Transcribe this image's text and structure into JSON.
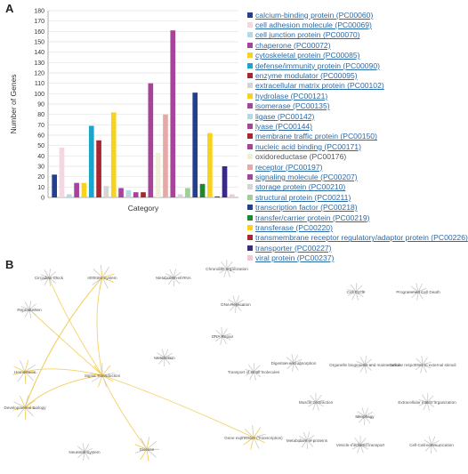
{
  "panel_a": {
    "label": "A"
  },
  "panel_b": {
    "label": "B"
  },
  "chart_data": {
    "type": "bar",
    "title": "",
    "xlabel": "Category",
    "ylabel": "Number of Genes",
    "ylim": [
      0,
      180
    ],
    "yticks": [
      0,
      10,
      20,
      30,
      40,
      50,
      60,
      70,
      80,
      90,
      100,
      110,
      120,
      130,
      140,
      150,
      160,
      170,
      180
    ],
    "grid": true,
    "legend_position": "right",
    "categories": [
      "calcium-binding protein (PC00060)",
      "cell adhesion molecule (PC00069)",
      "cell junction protein (PC00070)",
      "chaperone (PC00072)",
      "cytoskeletal protein (PC00085)",
      "defense/immunity protein (PC00090)",
      "enzyme modulator (PC00095)",
      "extracellular matrix protein (PC00102)",
      "hydrolase (PC00121)",
      "isomerase (PC00135)",
      "ligase (PC00142)",
      "lyase (PC00144)",
      "membrane traffic protein (PC00150)",
      "nucleic acid binding (PC00171)",
      "oxidoreductase (PC00176)",
      "receptor (PC00197)",
      "signaling molecule (PC00207)",
      "storage protein (PC00210)",
      "structural protein (PC00211)",
      "transcription factor (PC00218)",
      "transfer/carrier protein (PC00219)",
      "transferase (PC00220)",
      "transmembrane receptor regulatory/adaptor protein (PC00226)",
      "transporter (PC00227)",
      "viral protein (PC00237)"
    ],
    "values": [
      22,
      48,
      3,
      14,
      14,
      69,
      55,
      11,
      82,
      9,
      7,
      5,
      5,
      110,
      43,
      80,
      161,
      3,
      9,
      101,
      13,
      62,
      1,
      30,
      3
    ],
    "colors": [
      "#243f8e",
      "#f4d7e3",
      "#b6d9e6",
      "#a8439a",
      "#f7d21e",
      "#1aa6c9",
      "#a8262f",
      "#d5d5d5",
      "#f7d21e",
      "#a8439a",
      "#b6d9e6",
      "#a8439a",
      "#a8262f",
      "#a8439a",
      "#f1efd8",
      "#e8a8a8",
      "#a8439a",
      "#d5d5d5",
      "#9fcf94",
      "#243f8e",
      "#1a8a2c",
      "#f7d21e",
      "#a8262f",
      "#3a2a86",
      "#f4c7d8"
    ],
    "legend_linked": [
      true,
      true,
      true,
      true,
      true,
      true,
      true,
      true,
      true,
      true,
      true,
      true,
      true,
      true,
      false,
      true,
      true,
      true,
      true,
      true,
      true,
      true,
      true,
      true,
      true
    ]
  },
  "pathway_map": {
    "nodes": [
      {
        "name": "Circadian Clock"
      },
      {
        "name": "Immune System"
      },
      {
        "name": "Metabolism of RNA"
      },
      {
        "name": "Chromatin organization"
      },
      {
        "name": "DNA Replication"
      },
      {
        "name": "Cell Cycle"
      },
      {
        "name": "Programmed Cell Death"
      },
      {
        "name": "Reproduction"
      },
      {
        "name": "DNA Repair"
      },
      {
        "name": "Hemostasis"
      },
      {
        "name": "Signal Transduction"
      },
      {
        "name": "Metabolism"
      },
      {
        "name": "Transport of small molecules"
      },
      {
        "name": "Digestion and absorption"
      },
      {
        "name": "Organelle biogenesis and maintenance"
      },
      {
        "name": "Cellular responses to external stimuli"
      },
      {
        "name": "Developmental Biology"
      },
      {
        "name": "Muscle contraction"
      },
      {
        "name": "Mitophagy"
      },
      {
        "name": "Extracellular matrix organization"
      },
      {
        "name": "Neuronal System"
      },
      {
        "name": "Disease"
      },
      {
        "name": "Gene expression (Transcription)"
      },
      {
        "name": "Metabolism of proteins"
      },
      {
        "name": "Vesicle-mediated transport"
      },
      {
        "name": "Cell-Cell communication"
      }
    ]
  }
}
